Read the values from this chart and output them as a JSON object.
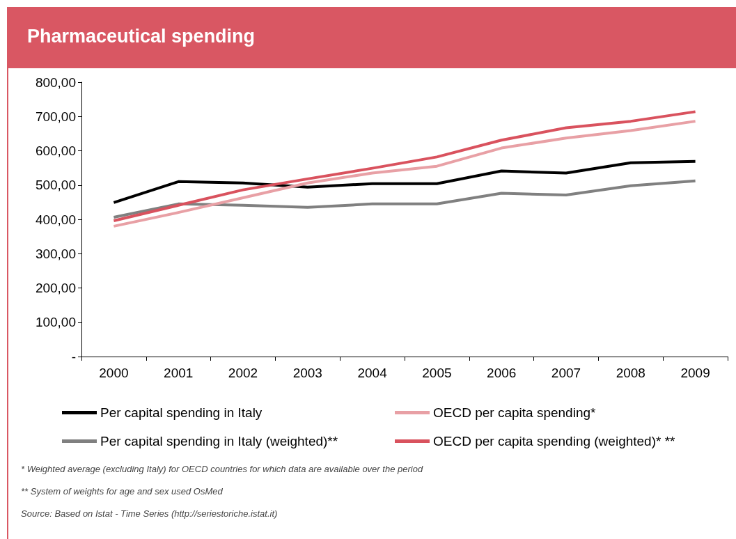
{
  "chart_data": {
    "type": "line",
    "title": "Pharmaceutical spending",
    "categories": [
      "2000",
      "2001",
      "2002",
      "2003",
      "2004",
      "2005",
      "2006",
      "2007",
      "2008",
      "2009"
    ],
    "series": [
      {
        "name": "Per capital spending in Italy",
        "color": "#000000",
        "values": [
          449,
          510,
          506,
          494,
          504,
          504,
          541,
          535,
          565,
          569
        ]
      },
      {
        "name": "Per capital spending in Italy (weighted)**",
        "color": "#808080",
        "values": [
          406,
          445,
          441,
          435,
          445,
          445,
          476,
          471,
          498,
          512
        ]
      },
      {
        "name": "OECD per capita spending*",
        "color": "#e8a0a5",
        "values": [
          380,
          420,
          463,
          506,
          535,
          555,
          608,
          637,
          659,
          686
        ]
      },
      {
        "name": "OECD per capita spending (weighted)* **",
        "color": "#d9525e",
        "values": [
          396,
          441,
          486,
          518,
          549,
          582,
          631,
          667,
          686,
          714
        ]
      }
    ],
    "ylim": [
      0,
      800
    ],
    "yticks": [
      {
        "value": 0,
        "label": "-"
      },
      {
        "value": 100,
        "label": "100,00"
      },
      {
        "value": 200,
        "label": "200,00"
      },
      {
        "value": 300,
        "label": "300,00"
      },
      {
        "value": 400,
        "label": "400,00"
      },
      {
        "value": 500,
        "label": "500,00"
      },
      {
        "value": 600,
        "label": "600,00"
      },
      {
        "value": 700,
        "label": "700,00"
      },
      {
        "value": 800,
        "label": "800,00"
      }
    ],
    "grid": false,
    "legend": "bottom",
    "marker": "none",
    "line_style": "solid",
    "annotations": [
      "* Weighted average (excluding Italy) for OECD countries for which data are available over the period",
      "** System of weights for age and sex used OsMed",
      "Source: Based on Istat - Time Series (http://seriestoriche.istat.it)"
    ]
  }
}
